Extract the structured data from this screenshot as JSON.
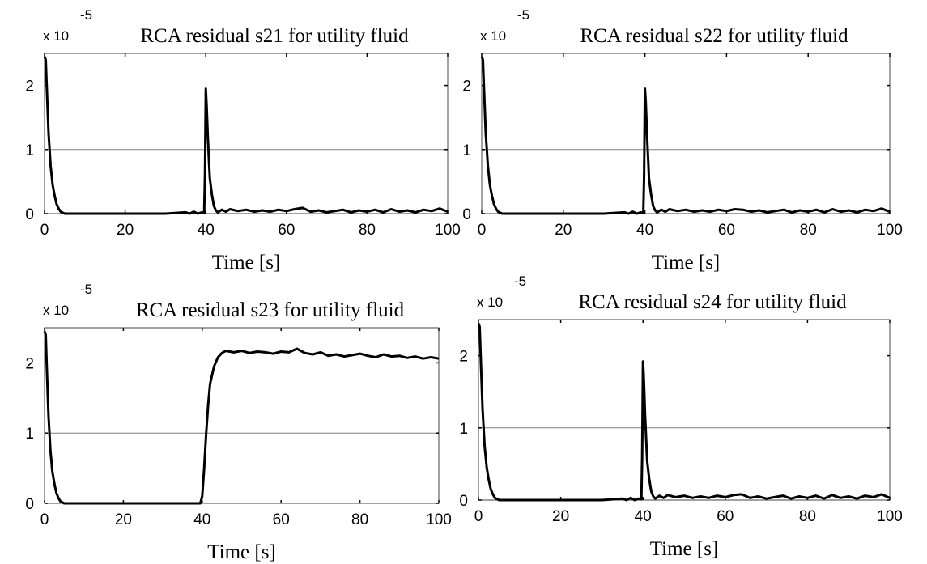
{
  "page": {
    "background": "#ffffff",
    "line_color": "#000000",
    "threshold_color": "#808080"
  },
  "chart_data": [
    {
      "type": "line",
      "title": "RCA residual s21 for utility fluid",
      "xlabel": "Time [s]",
      "ylabel": "",
      "scale_label": "x 10",
      "scale_exponent": "-5",
      "xlim": [
        0,
        100
      ],
      "ylim": [
        0,
        2.5
      ],
      "xticks": [
        "0",
        "20",
        "40",
        "60",
        "80",
        "100"
      ],
      "yticks": [
        "0",
        "1",
        "2"
      ],
      "threshold": 1,
      "grid": false,
      "series": [
        {
          "x": [
            0,
            0.3,
            0.6,
            1,
            1.5,
            2,
            2.5,
            3,
            3.5,
            4,
            5,
            6,
            10,
            20,
            30,
            35,
            36,
            37,
            38,
            39,
            39.6,
            39.8,
            40,
            40.2,
            40.5,
            40.8,
            41,
            41.5,
            42,
            42.5,
            43,
            44,
            45,
            46,
            48,
            50,
            52,
            54,
            56,
            58,
            60,
            62,
            64,
            66,
            68,
            70,
            72,
            74,
            76,
            78,
            80,
            82,
            84,
            86,
            88,
            90,
            92,
            94,
            96,
            98,
            100
          ],
          "y": [
            2.45,
            2.4,
            1.9,
            1.25,
            0.75,
            0.45,
            0.28,
            0.15,
            0.08,
            0.03,
            0.0,
            0.0,
            0.0,
            0.0,
            0.0,
            0.02,
            0.0,
            0.03,
            0.0,
            0.02,
            0.01,
            0.6,
            1.95,
            1.7,
            1.2,
            0.8,
            0.55,
            0.3,
            0.12,
            0.05,
            0.02,
            0.06,
            0.03,
            0.07,
            0.04,
            0.06,
            0.03,
            0.05,
            0.03,
            0.06,
            0.04,
            0.07,
            0.09,
            0.03,
            0.05,
            0.02,
            0.04,
            0.06,
            0.02,
            0.05,
            0.03,
            0.06,
            0.02,
            0.07,
            0.03,
            0.05,
            0.02,
            0.06,
            0.04,
            0.08,
            0.03
          ]
        }
      ]
    },
    {
      "type": "line",
      "title": "RCA residual s22 for utility fluid",
      "xlabel": "Time [s]",
      "ylabel": "",
      "scale_label": "x 10",
      "scale_exponent": "-5",
      "xlim": [
        0,
        100
      ],
      "ylim": [
        0,
        2.5
      ],
      "xticks": [
        "0",
        "20",
        "40",
        "60",
        "80",
        "100"
      ],
      "yticks": [
        "0",
        "1",
        "2"
      ],
      "threshold": 1,
      "grid": false,
      "series": [
        {
          "x": [
            0,
            0.3,
            0.6,
            1,
            1.5,
            2,
            2.5,
            3,
            3.5,
            4,
            5,
            6,
            10,
            20,
            30,
            35,
            36,
            37,
            38,
            39,
            39.6,
            39.8,
            40,
            40.2,
            40.5,
            40.8,
            41,
            41.5,
            42,
            42.5,
            43,
            44,
            45,
            46,
            48,
            50,
            52,
            54,
            56,
            58,
            60,
            62,
            64,
            66,
            68,
            70,
            72,
            74,
            76,
            78,
            80,
            82,
            84,
            86,
            88,
            90,
            92,
            94,
            96,
            98,
            100
          ],
          "y": [
            2.45,
            2.4,
            1.9,
            1.25,
            0.75,
            0.45,
            0.28,
            0.15,
            0.08,
            0.03,
            0.0,
            0.0,
            0.0,
            0.0,
            0.0,
            0.02,
            0.0,
            0.03,
            0.0,
            0.02,
            0.01,
            0.6,
            1.95,
            1.75,
            1.25,
            0.85,
            0.55,
            0.3,
            0.12,
            0.05,
            0.02,
            0.06,
            0.03,
            0.07,
            0.04,
            0.06,
            0.03,
            0.05,
            0.03,
            0.06,
            0.04,
            0.07,
            0.06,
            0.03,
            0.05,
            0.02,
            0.04,
            0.06,
            0.02,
            0.05,
            0.03,
            0.06,
            0.02,
            0.07,
            0.03,
            0.05,
            0.02,
            0.06,
            0.04,
            0.08,
            0.03
          ]
        }
      ]
    },
    {
      "type": "line",
      "title": "RCA residual s23 for utility fluid",
      "xlabel": "Time [s]",
      "ylabel": "",
      "scale_label": "x 10",
      "scale_exponent": "-5",
      "xlim": [
        0,
        100
      ],
      "ylim": [
        0,
        2.5
      ],
      "xticks": [
        "0",
        "20",
        "40",
        "60",
        "80",
        "100"
      ],
      "yticks": [
        "0",
        "1",
        "2"
      ],
      "threshold": 1,
      "grid": false,
      "series": [
        {
          "x": [
            0,
            0.3,
            0.6,
            1,
            1.5,
            2,
            2.5,
            3,
            3.5,
            4,
            5,
            6,
            10,
            20,
            30,
            35,
            38,
            39.5,
            40,
            40.5,
            41,
            41.5,
            42,
            43,
            44,
            45,
            46,
            48,
            50,
            52,
            54,
            56,
            58,
            60,
            62,
            64,
            66,
            68,
            70,
            72,
            74,
            76,
            78,
            80,
            82,
            84,
            86,
            88,
            90,
            92,
            94,
            96,
            98,
            100
          ],
          "y": [
            2.45,
            2.4,
            1.9,
            1.25,
            0.75,
            0.45,
            0.28,
            0.15,
            0.08,
            0.03,
            0.0,
            0.0,
            0.0,
            0.0,
            0.0,
            0.0,
            0.0,
            0.0,
            0.1,
            0.5,
            1.0,
            1.4,
            1.7,
            1.95,
            2.08,
            2.14,
            2.17,
            2.15,
            2.17,
            2.14,
            2.16,
            2.15,
            2.13,
            2.16,
            2.15,
            2.2,
            2.14,
            2.12,
            2.15,
            2.1,
            2.12,
            2.09,
            2.11,
            2.13,
            2.1,
            2.08,
            2.12,
            2.09,
            2.1,
            2.07,
            2.09,
            2.06,
            2.08,
            2.06
          ]
        }
      ]
    },
    {
      "type": "line",
      "title": "RCA residual s24 for utility fluid",
      "xlabel": "Time [s]",
      "ylabel": "",
      "scale_label": "x 10",
      "scale_exponent": "-5",
      "xlim": [
        0,
        100
      ],
      "ylim": [
        0,
        2.5
      ],
      "xticks": [
        "0",
        "20",
        "40",
        "60",
        "80",
        "100"
      ],
      "yticks": [
        "0",
        "1",
        "2"
      ],
      "threshold": 1,
      "grid": false,
      "series": [
        {
          "x": [
            0,
            0.3,
            0.6,
            1,
            1.5,
            2,
            2.5,
            3,
            3.5,
            4,
            5,
            6,
            10,
            20,
            30,
            35,
            36,
            37,
            38,
            39,
            39.6,
            39.8,
            40,
            40.2,
            40.5,
            40.8,
            41,
            41.5,
            42,
            42.5,
            43,
            44,
            45,
            46,
            48,
            50,
            52,
            54,
            56,
            58,
            60,
            62,
            64,
            66,
            68,
            70,
            72,
            74,
            76,
            78,
            80,
            82,
            84,
            86,
            88,
            90,
            92,
            94,
            96,
            98,
            100
          ],
          "y": [
            2.45,
            2.4,
            1.9,
            1.25,
            0.75,
            0.45,
            0.28,
            0.15,
            0.08,
            0.03,
            0.0,
            0.0,
            0.0,
            0.0,
            0.0,
            0.02,
            0.0,
            0.03,
            0.0,
            0.02,
            0.01,
            0.6,
            1.92,
            1.7,
            1.2,
            0.8,
            0.55,
            0.3,
            0.12,
            0.05,
            0.02,
            0.06,
            0.03,
            0.07,
            0.04,
            0.06,
            0.03,
            0.05,
            0.03,
            0.06,
            0.04,
            0.07,
            0.08,
            0.03,
            0.05,
            0.02,
            0.04,
            0.06,
            0.02,
            0.05,
            0.03,
            0.06,
            0.02,
            0.07,
            0.03,
            0.05,
            0.02,
            0.06,
            0.04,
            0.08,
            0.03
          ]
        }
      ]
    }
  ]
}
